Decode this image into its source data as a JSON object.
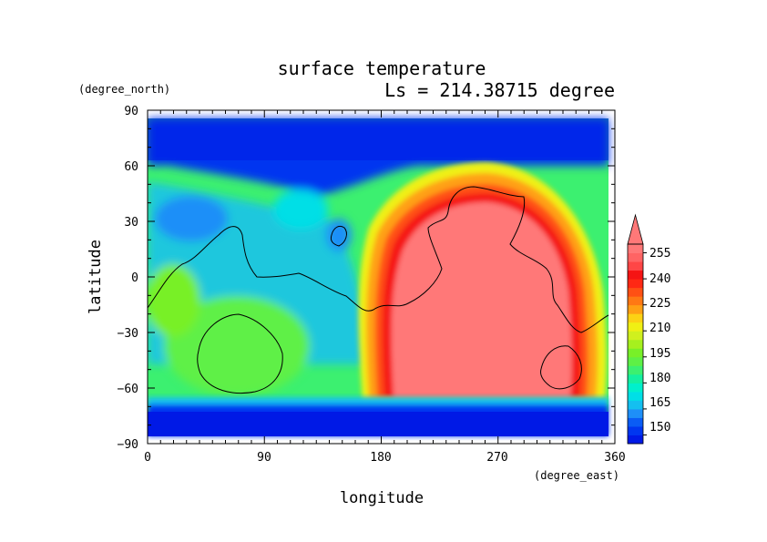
{
  "chart_data": {
    "type": "heatmap",
    "title": "surface temperature",
    "subtitle": "Ls = 214.38715 degree",
    "xlabel": "longitude",
    "ylabel": "latitude",
    "x_unit": "(degree_east)",
    "y_unit": "(degree_north)",
    "xlim": [
      0,
      360
    ],
    "ylim": [
      -90,
      90
    ],
    "x_ticks": [
      "0",
      "90",
      "180",
      "270",
      "360"
    ],
    "y_ticks": [
      "90",
      "60",
      "30",
      "0",
      "−30",
      "−60",
      "−90"
    ],
    "colorbar": {
      "levels": [
        145,
        150,
        155,
        160,
        165,
        170,
        175,
        180,
        185,
        190,
        195,
        200,
        205,
        210,
        215,
        220,
        225,
        230,
        235,
        240,
        245,
        250,
        255,
        260
      ],
      "labels": [
        "150",
        "165",
        "180",
        "195",
        "210",
        "225",
        "240",
        "255"
      ],
      "colors": [
        "#0019e6",
        "#0036f0",
        "#0a5cf5",
        "#1e8ff8",
        "#14bff0",
        "#00dfe6",
        "#00f0cc",
        "#14f0a0",
        "#3cf070",
        "#5ef046",
        "#78f028",
        "#a6f01e",
        "#d0f01e",
        "#f0f014",
        "#fcd214",
        "#ffa014",
        "#ff7814",
        "#ff5014",
        "#ff2814",
        "#f51414",
        "#ff4646",
        "#ff6464",
        "#ff7878"
      ],
      "extend": "max"
    }
  }
}
